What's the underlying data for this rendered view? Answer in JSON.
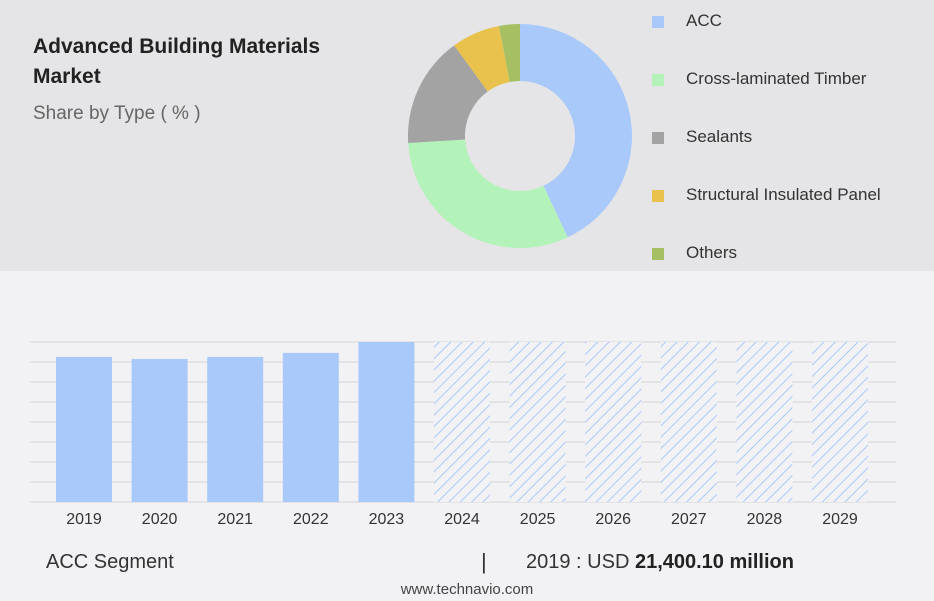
{
  "header": {
    "title": "Advanced Building Materials Market",
    "subtitle": "Share by Type ( % )"
  },
  "colors": {
    "bar_actual": "#a9c9fb",
    "bar_hatch": "#a9c9fb",
    "grid": "#d4d4d8"
  },
  "chart_data": [
    {
      "type": "pie",
      "donut": true,
      "title": "",
      "categories": [
        "ACC",
        "Cross-laminated Timber",
        "Sealants",
        "Structural Insulated Panel",
        "Others"
      ],
      "values": [
        43,
        31,
        16,
        7,
        3
      ],
      "colors": [
        "#a9c9fb",
        "#b3f2b8",
        "#a3a3a3",
        "#e9c24d",
        "#a5bf62"
      ],
      "legend": "right"
    },
    {
      "type": "bar",
      "title": "",
      "categories": [
        "2019",
        "2020",
        "2021",
        "2022",
        "2023",
        "2024",
        "2025",
        "2026",
        "2027",
        "2028",
        "2029"
      ],
      "values": [
        21400.1,
        21100,
        21400,
        22000,
        23600,
        23600,
        23600,
        23600,
        23600,
        23600,
        23600
      ],
      "forecast_from": "2024",
      "ylim": [
        0,
        23600
      ],
      "grid": true
    }
  ],
  "footer": {
    "segment_label": "ACC Segment",
    "separator": "|",
    "year_label": "2019 : USD",
    "value_label": "21,400.10 million",
    "source": "www.technavio.com"
  }
}
